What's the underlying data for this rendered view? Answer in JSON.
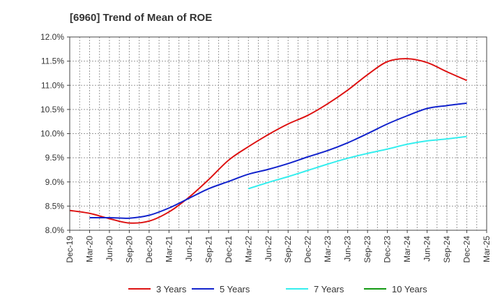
{
  "chart_data": {
    "type": "line",
    "title": "[6960]  Trend of Mean of ROE",
    "xlabel": "",
    "ylabel": "",
    "categories": [
      "Dec-19",
      "Mar-20",
      "Jun-20",
      "Sep-20",
      "Dec-20",
      "Mar-21",
      "Jun-21",
      "Sep-21",
      "Dec-21",
      "Mar-22",
      "Jun-22",
      "Sep-22",
      "Dec-22",
      "Mar-23",
      "Jun-23",
      "Sep-23",
      "Dec-23",
      "Mar-24",
      "Jun-24",
      "Sep-24",
      "Dec-24",
      "Mar-25"
    ],
    "ylim": [
      8.0,
      12.0
    ],
    "yticks": [
      "8.0%",
      "8.5%",
      "9.0%",
      "9.5%",
      "10.0%",
      "10.5%",
      "11.0%",
      "11.5%",
      "12.0%"
    ],
    "ytick_values": [
      8.0,
      8.5,
      9.0,
      9.5,
      10.0,
      10.5,
      11.0,
      11.5,
      12.0
    ],
    "grid": true,
    "legend_position": "bottom",
    "series": [
      {
        "name": "3 Years",
        "color": "#dd1111",
        "values": [
          8.41,
          8.35,
          8.24,
          8.15,
          8.19,
          8.38,
          8.68,
          9.05,
          9.45,
          9.73,
          9.98,
          10.2,
          10.38,
          10.62,
          10.9,
          11.22,
          11.49,
          11.55,
          11.47,
          11.28,
          11.1,
          null
        ]
      },
      {
        "name": "5 Years",
        "color": "#1122cc",
        "values": [
          null,
          8.26,
          8.26,
          8.25,
          8.31,
          8.46,
          8.66,
          8.86,
          9.01,
          9.16,
          9.26,
          9.38,
          9.52,
          9.65,
          9.81,
          10.0,
          10.2,
          10.37,
          10.52,
          10.58,
          10.63,
          null
        ]
      },
      {
        "name": "7 Years",
        "color": "#33eeee",
        "values": [
          null,
          null,
          null,
          null,
          null,
          null,
          null,
          null,
          null,
          8.86,
          8.99,
          9.11,
          9.24,
          9.37,
          9.49,
          9.59,
          9.68,
          9.78,
          9.85,
          9.89,
          9.94,
          null
        ]
      },
      {
        "name": "10 Years",
        "color": "#119911",
        "values": [
          null,
          null,
          null,
          null,
          null,
          null,
          null,
          null,
          null,
          null,
          null,
          null,
          null,
          null,
          null,
          null,
          null,
          null,
          null,
          null,
          null,
          null
        ]
      }
    ]
  }
}
